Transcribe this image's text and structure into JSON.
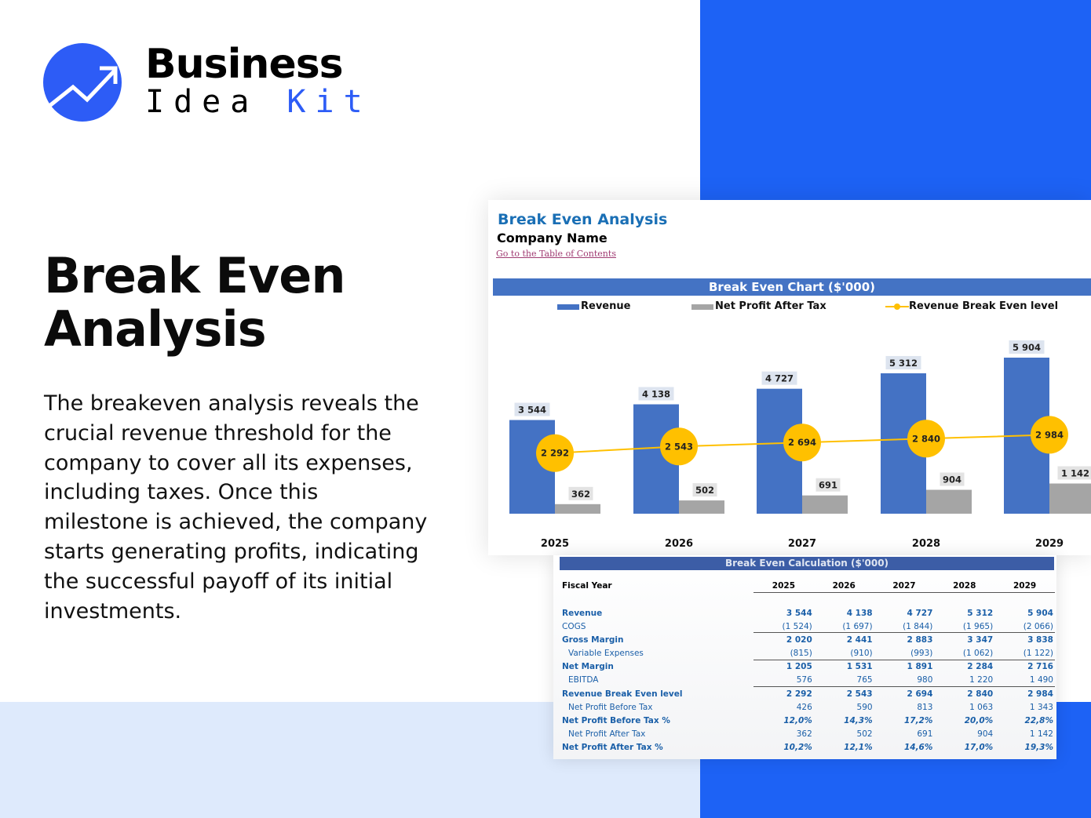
{
  "brand": {
    "line1": "Business",
    "line2a": "Idea",
    "line2b": "Kit",
    "accent": "#2d5cf6"
  },
  "hero": {
    "title_line1": "Break Even",
    "title_line2": "Analysis",
    "body": "The breakeven analysis reveals the crucial revenue threshold for the company to cover all its expenses, including taxes. Once this milestone is achieved, the company starts generating profits, indicating the successful payoff of its initial investments."
  },
  "sheet": {
    "title": "Break Even Analysis",
    "company": "Company Name",
    "toc_link": "Go to the Table of Contents"
  },
  "chart_data": {
    "type": "bar",
    "title": "Break Even Chart ($'000)",
    "categories": [
      "2025",
      "2026",
      "2027",
      "2028",
      "2029"
    ],
    "series": [
      {
        "name": "Revenue",
        "kind": "bar",
        "color": "#4472c4",
        "values": [
          3544,
          4138,
          4727,
          5312,
          5904
        ],
        "labels": [
          "3 544",
          "4 138",
          "4 727",
          "5 312",
          "5 904"
        ]
      },
      {
        "name": "Net Profit After Tax",
        "kind": "bar",
        "color": "#a5a5a5",
        "values": [
          362,
          502,
          691,
          904,
          1142
        ],
        "labels": [
          "362",
          "502",
          "691",
          "904",
          "1 142"
        ]
      },
      {
        "name": "Revenue Break Even level",
        "kind": "line",
        "color": "#ffc000",
        "values": [
          2292,
          2543,
          2694,
          2840,
          2984
        ],
        "labels": [
          "2 292",
          "2 543",
          "2 694",
          "2 840",
          "2 984"
        ]
      }
    ],
    "legend": "top",
    "grid": false
  },
  "table": {
    "title": "Break Even Calculation ($'000)",
    "header": "Fiscal Year",
    "years": [
      "2025",
      "2026",
      "2027",
      "2028",
      "2029"
    ],
    "rows": [
      {
        "label": "Revenue",
        "values": [
          "3 544",
          "4 138",
          "4 727",
          "5 312",
          "5 904"
        ]
      },
      {
        "label": "COGS",
        "values": [
          "(1 524)",
          "(1 697)",
          "(1 844)",
          "(1 965)",
          "(2 066)"
        ]
      },
      {
        "label": "Gross Margin",
        "values": [
          "2 020",
          "2 441",
          "2 883",
          "3 347",
          "3 838"
        ]
      },
      {
        "label": "Variable Expenses",
        "values": [
          "(815)",
          "(910)",
          "(993)",
          "(1 062)",
          "(1 122)"
        ]
      },
      {
        "label": "Net Margin",
        "values": [
          "1 205",
          "1 531",
          "1 891",
          "2 284",
          "2 716"
        ]
      },
      {
        "label": "EBITDA",
        "values": [
          "576",
          "765",
          "980",
          "1 220",
          "1 490"
        ]
      },
      {
        "label": "Revenue Break Even level",
        "values": [
          "2 292",
          "2 543",
          "2 694",
          "2 840",
          "2 984"
        ]
      },
      {
        "label": "Net Profit Before Tax",
        "values": [
          "426",
          "590",
          "813",
          "1 063",
          "1 343"
        ]
      },
      {
        "label": "Net Profit Before Tax %",
        "values": [
          "12,0%",
          "14,3%",
          "17,2%",
          "20,0%",
          "22,8%"
        ]
      },
      {
        "label": "Net Profit After Tax",
        "values": [
          "362",
          "502",
          "691",
          "904",
          "1 142"
        ]
      },
      {
        "label": "Net Profit After Tax %",
        "values": [
          "10,2%",
          "12,1%",
          "14,6%",
          "17,0%",
          "19,3%"
        ]
      }
    ]
  }
}
